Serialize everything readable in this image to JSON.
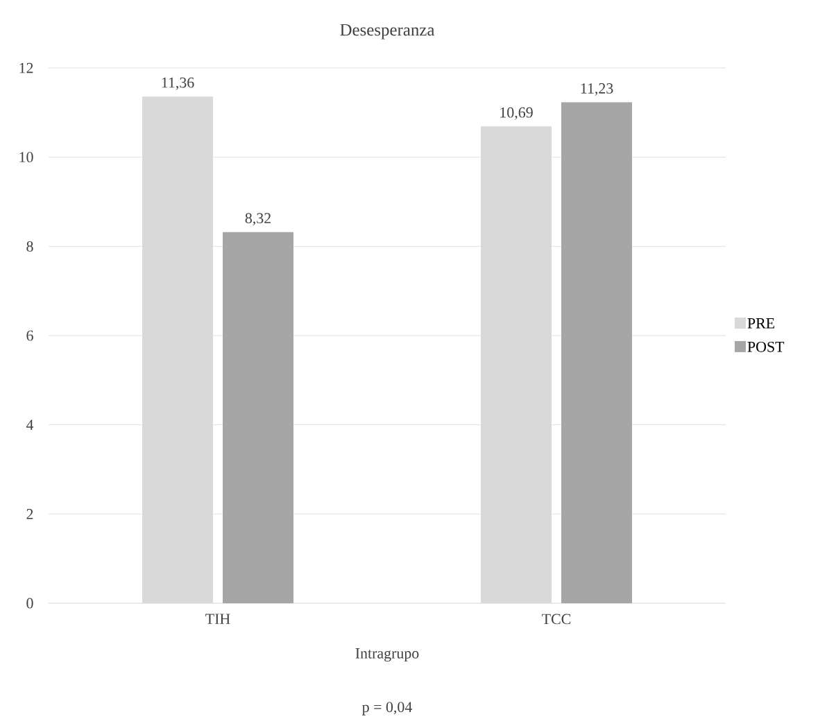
{
  "chart_data": {
    "type": "bar",
    "title": "Desesperanza",
    "xlabel": "Intragrupo",
    "categories": [
      "TIH",
      "TCC"
    ],
    "series": [
      {
        "name": "PRE",
        "color": "#d9d9d9",
        "values": [
          11.36,
          10.69
        ],
        "value_labels": [
          "11,36",
          "10,69"
        ]
      },
      {
        "name": "POST",
        "color": "#a6a6a6",
        "values": [
          8.32,
          11.23
        ],
        "value_labels": [
          "8,32",
          "11,23"
        ]
      }
    ],
    "ylim": [
      0,
      12
    ],
    "yticks": [
      0,
      2,
      4,
      6,
      8,
      10,
      12
    ],
    "grid": "y",
    "legend": "right",
    "annotations": [
      "p = 0,04"
    ]
  }
}
